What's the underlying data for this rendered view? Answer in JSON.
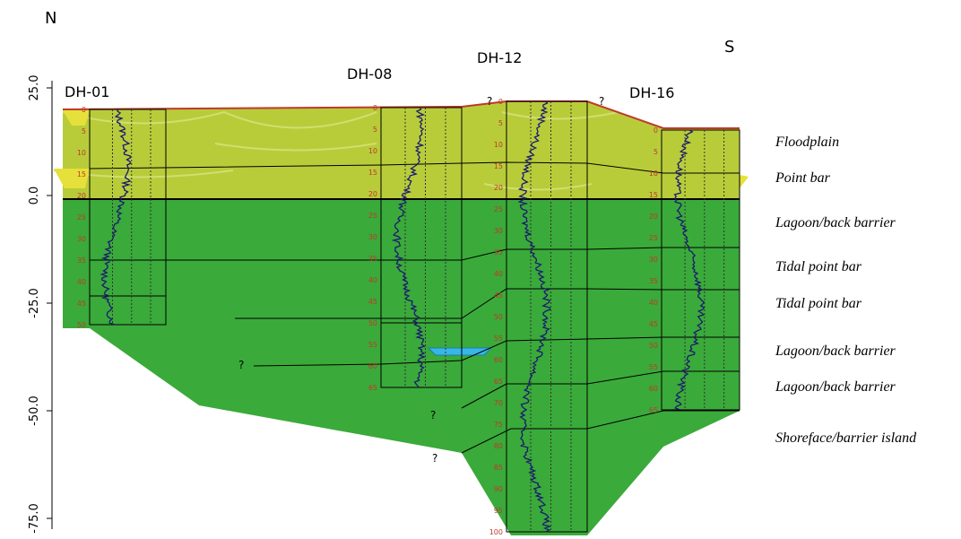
{
  "compass": {
    "north": "N",
    "south": "S"
  },
  "axis": {
    "ticks": [
      {
        "value": 25,
        "label": "25.0"
      },
      {
        "value": 0,
        "label": "0.0"
      },
      {
        "value": -25,
        "label": "-25.0"
      },
      {
        "value": -50,
        "label": "-50.0"
      },
      {
        "value": -75,
        "label": "-75.0"
      }
    ]
  },
  "wells": [
    {
      "name": "DH-01",
      "depths": [
        0,
        5,
        10,
        15,
        20,
        25,
        30,
        35,
        40,
        45,
        50
      ]
    },
    {
      "name": "DH-08",
      "depths": [
        0,
        5,
        10,
        15,
        20,
        25,
        30,
        35,
        40,
        45,
        50,
        55,
        60,
        65
      ]
    },
    {
      "name": "DH-12",
      "depths": [
        0,
        5,
        10,
        15,
        20,
        25,
        30,
        35,
        40,
        45,
        50,
        55,
        60,
        65,
        70,
        75,
        80,
        85,
        90,
        95,
        100
      ]
    },
    {
      "name": "DH-16",
      "depths": [
        0,
        5,
        10,
        15,
        20,
        25,
        30,
        35,
        40,
        45,
        50,
        55,
        60,
        65
      ]
    }
  ],
  "facies": [
    "Floodplain",
    "Point bar",
    "Lagoon/back barrier",
    "Tidal point bar",
    "Tidal point bar",
    "Lagoon/back barrier",
    "Lagoon/back barrier",
    "Shoreface/barrier island"
  ],
  "queries": [
    "?",
    "?",
    "?",
    "?",
    "?"
  ]
}
